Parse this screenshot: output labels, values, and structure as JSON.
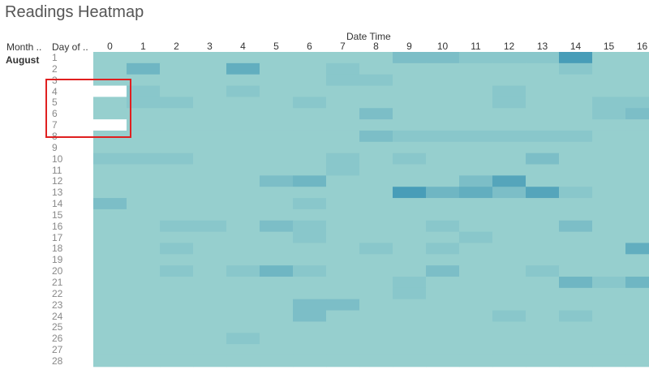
{
  "title": "Readings Heatmap",
  "headers": {
    "month": "Month ..",
    "day": "Day of ..",
    "datetime": "Date Time"
  },
  "month_label": "August",
  "colors": {
    "light": "#b0e0d6",
    "dark": "#2e8cb0",
    "missing": "#ffffff",
    "highlight": "#e02020"
  },
  "chart_data": {
    "type": "heatmap",
    "title": "Readings Heatmap",
    "x_title": "Date Time",
    "row_headers": [
      "Month ..",
      "Day of .."
    ],
    "month": "August",
    "x": [
      "0",
      "1",
      "2",
      "3",
      "4",
      "5",
      "6",
      "7",
      "8",
      "9",
      "10",
      "11",
      "12",
      "13",
      "14",
      "15",
      "16"
    ],
    "y": [
      "1",
      "2",
      "3",
      "4",
      "5",
      "6",
      "7",
      "8",
      "9",
      "10",
      "11",
      "12",
      "13",
      "14",
      "15",
      "16",
      "17",
      "18",
      "19",
      "20",
      "21",
      "22",
      "23",
      "24",
      "25",
      "26",
      "27",
      "28"
    ],
    "value_range": [
      0,
      10
    ],
    "values": [
      [
        2,
        2,
        2,
        2,
        2,
        2,
        2,
        2,
        2,
        4,
        4,
        3,
        3,
        3,
        8,
        2,
        2
      ],
      [
        2,
        5,
        2,
        2,
        6,
        2,
        2,
        3,
        2,
        2,
        2,
        2,
        2,
        2,
        3,
        2,
        2
      ],
      [
        2,
        2,
        2,
        2,
        2,
        2,
        2,
        3,
        3,
        2,
        2,
        2,
        2,
        2,
        2,
        2,
        2
      ],
      [
        null,
        3,
        2,
        2,
        3,
        2,
        2,
        2,
        2,
        2,
        2,
        2,
        3,
        2,
        2,
        2,
        2
      ],
      [
        2,
        3,
        3,
        2,
        2,
        2,
        3,
        2,
        2,
        2,
        2,
        2,
        3,
        2,
        2,
        3,
        3
      ],
      [
        2,
        2,
        2,
        2,
        2,
        2,
        2,
        2,
        4,
        2,
        2,
        2,
        2,
        2,
        2,
        3,
        4
      ],
      [
        null,
        2,
        2,
        2,
        2,
        2,
        2,
        2,
        2,
        2,
        2,
        2,
        2,
        2,
        2,
        2,
        2
      ],
      [
        2,
        2,
        2,
        2,
        2,
        2,
        2,
        2,
        4,
        3,
        3,
        3,
        3,
        3,
        3,
        2,
        2
      ],
      [
        2,
        2,
        2,
        2,
        2,
        2,
        2,
        2,
        2,
        2,
        2,
        2,
        2,
        2,
        2,
        2,
        2
      ],
      [
        3,
        3,
        3,
        2,
        2,
        2,
        2,
        3,
        2,
        3,
        2,
        2,
        2,
        4,
        2,
        2,
        2
      ],
      [
        2,
        2,
        2,
        2,
        2,
        2,
        2,
        3,
        2,
        2,
        2,
        2,
        2,
        2,
        2,
        2,
        2
      ],
      [
        2,
        2,
        2,
        2,
        2,
        4,
        5,
        2,
        2,
        2,
        2,
        4,
        7,
        2,
        2,
        2,
        2
      ],
      [
        2,
        2,
        2,
        2,
        2,
        2,
        2,
        2,
        2,
        8,
        5,
        6,
        4,
        7,
        3,
        2,
        2
      ],
      [
        4,
        2,
        2,
        2,
        2,
        2,
        3,
        2,
        2,
        2,
        2,
        2,
        2,
        2,
        2,
        2,
        2
      ],
      [
        2,
        2,
        2,
        2,
        2,
        2,
        2,
        2,
        2,
        2,
        2,
        2,
        2,
        2,
        2,
        2,
        2
      ],
      [
        2,
        2,
        3,
        3,
        2,
        4,
        3,
        2,
        2,
        2,
        3,
        2,
        2,
        2,
        4,
        2,
        2
      ],
      [
        2,
        2,
        2,
        2,
        2,
        2,
        3,
        2,
        2,
        2,
        2,
        3,
        2,
        2,
        2,
        2,
        2
      ],
      [
        2,
        2,
        3,
        2,
        2,
        2,
        2,
        2,
        3,
        2,
        3,
        2,
        2,
        2,
        2,
        2,
        6
      ],
      [
        2,
        2,
        2,
        2,
        2,
        2,
        2,
        2,
        2,
        2,
        2,
        2,
        2,
        2,
        2,
        2,
        2
      ],
      [
        2,
        2,
        3,
        2,
        3,
        5,
        3,
        2,
        2,
        2,
        4,
        2,
        2,
        3,
        2,
        2,
        2
      ],
      [
        2,
        2,
        2,
        2,
        2,
        2,
        2,
        2,
        2,
        3,
        2,
        2,
        2,
        2,
        5,
        3,
        5
      ],
      [
        2,
        2,
        2,
        2,
        2,
        2,
        2,
        2,
        2,
        3,
        2,
        2,
        2,
        2,
        2,
        2,
        2
      ],
      [
        2,
        2,
        2,
        2,
        2,
        2,
        4,
        4,
        2,
        2,
        2,
        2,
        2,
        2,
        2,
        2,
        2
      ],
      [
        2,
        2,
        2,
        2,
        2,
        2,
        4,
        2,
        2,
        2,
        2,
        2,
        3,
        2,
        3,
        2,
        2
      ],
      [
        2,
        2,
        2,
        2,
        2,
        2,
        2,
        2,
        2,
        2,
        2,
        2,
        2,
        2,
        2,
        2,
        2
      ],
      [
        2,
        2,
        2,
        2,
        3,
        2,
        2,
        2,
        2,
        2,
        2,
        2,
        2,
        2,
        2,
        2,
        2
      ],
      [
        2,
        2,
        2,
        2,
        2,
        2,
        2,
        2,
        2,
        2,
        2,
        2,
        2,
        2,
        2,
        2,
        2
      ],
      [
        2,
        2,
        2,
        2,
        2,
        2,
        2,
        2,
        2,
        2,
        2,
        2,
        2,
        2,
        2,
        2,
        2
      ]
    ],
    "annotation": "red rectangle around Day of .. 3-8 at Date Time 0 (missing cells on days 4 and 7)"
  }
}
